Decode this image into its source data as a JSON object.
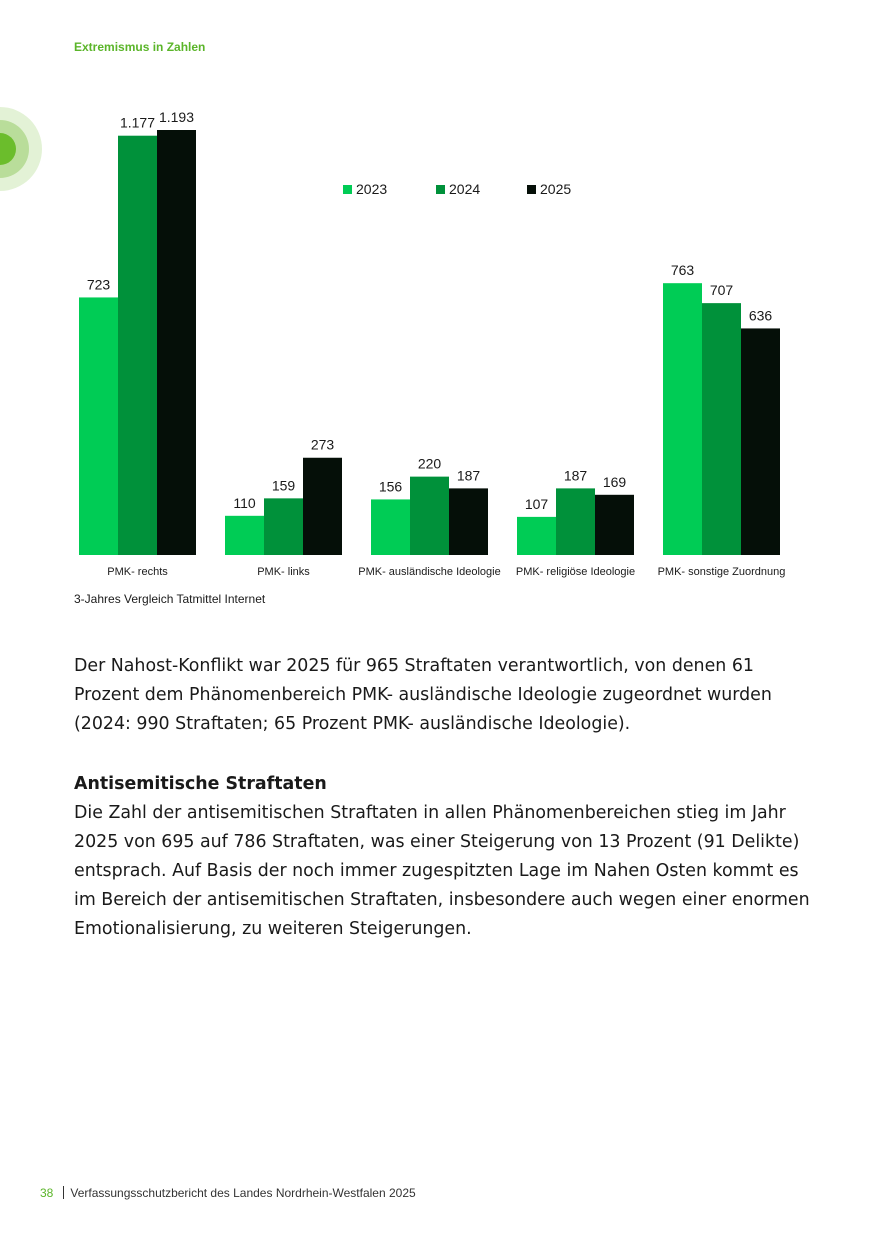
{
  "header": {
    "running_title": "Extremismus in Zahlen"
  },
  "chart_data": {
    "type": "bar",
    "title": "",
    "categories": [
      "PMK- rechts",
      "PMK- links",
      "PMK- ausländische Ideologie",
      "PMK- religiöse Ideologie",
      "PMK- sonstige Zuordnung"
    ],
    "series": [
      {
        "name": "2023",
        "values": [
          723,
          110,
          156,
          107,
          763
        ],
        "labels": [
          "723",
          "110",
          "156",
          "107",
          "763"
        ],
        "color": "#00cc55"
      },
      {
        "name": "2024",
        "values": [
          1177,
          159,
          220,
          187,
          707
        ],
        "labels": [
          "1.177",
          "159",
          "220",
          "187",
          "707"
        ],
        "color": "#00913a"
      },
      {
        "name": "2025",
        "values": [
          1193,
          273,
          187,
          169,
          636
        ],
        "labels": [
          "1.193",
          "273",
          "187",
          "169",
          "636"
        ],
        "color": "#050f08"
      }
    ],
    "xlabel": "",
    "ylabel": "",
    "ylim": [
      0,
      1193
    ],
    "grid": false,
    "legend_position": "top-center"
  },
  "chart_caption": "3-Jahres Vergleich Tatmittel Internet",
  "body": {
    "paragraph_1": "Der Nahost-Konflikt war 2025 für 965 Straftaten verantwortlich, von denen 61 Prozent dem Phänomenbereich PMK- ausländische Ideologie zugeordnet wurden (2024: 990 Straftaten; 65 Prozent PMK- ausländische Ideologie).",
    "heading": "Antisemitische Straftaten",
    "paragraph_2": "Die Zahl der antisemitischen Straftaten in allen Phänomenbereichen stieg im Jahr 2025 von 695 auf 786 Straftaten, was einer Steigerung von 13 Prozent (91 Delikte) entsprach. Auf Basis der noch immer zugespitzten Lage im Nahen Osten kommt es im Bereich der antisemitischen Straftaten, insbesondere auch wegen einer enormen Emotionalisierung, zu weiteren Steigerungen."
  },
  "footer": {
    "page_number": "38",
    "publication": "Verfassungsschutzbericht des Landes Nordrhein-Westfalen 2025"
  },
  "colors": {
    "accent": "#5bb52a"
  }
}
